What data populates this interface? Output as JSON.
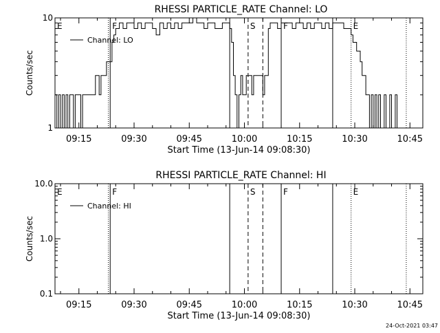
{
  "footer_date": "24-Oct-2021 03:47",
  "chart_data": [
    {
      "type": "line",
      "title": "RHESSI PARTICLE_RATE Channel: LO",
      "xlabel": "Start Time (13-Jun-14 09:08:30)",
      "ylabel": "Counts/sec",
      "y_scale": "log",
      "ylim": [
        1,
        10
      ],
      "y_ticks": [
        {
          "value": 1,
          "label": "1"
        },
        {
          "value": 10,
          "label": "10"
        }
      ],
      "xlim": [
        "09:08:30",
        "10:48:30"
      ],
      "x_ticks": [
        "09:15",
        "09:30",
        "09:45",
        "10:00",
        "10:15",
        "10:30",
        "10:45"
      ],
      "legend": {
        "position": "top-left",
        "label": "Channel: LO"
      },
      "markers": [
        {
          "time": "09:08:30",
          "label": "E",
          "style": "none"
        },
        {
          "time": "09:23:30",
          "label": "F",
          "style": "solid"
        },
        {
          "time": "09:23:00",
          "label": "",
          "style": "dotted"
        },
        {
          "time": "09:56:00",
          "label": "",
          "style": "solid"
        },
        {
          "time": "10:01:00",
          "label": "S",
          "style": "dashed"
        },
        {
          "time": "10:05:00",
          "label": "",
          "style": "dashed"
        },
        {
          "time": "10:10:00",
          "label": "F",
          "style": "solid"
        },
        {
          "time": "10:24:00",
          "label": "",
          "style": "solid"
        },
        {
          "time": "10:29:00",
          "label": "E",
          "style": "dotted"
        },
        {
          "time": "10:44:00",
          "label": "",
          "style": "dotted"
        }
      ],
      "series": [
        {
          "name": "Channel: LO",
          "x": [
            "09:08:30",
            "09:09:00",
            "09:09:30",
            "09:10:00",
            "09:10:30",
            "09:11:00",
            "09:11:30",
            "09:12:00",
            "09:12:30",
            "09:13:00",
            "09:13:30",
            "09:14:00",
            "09:14:30",
            "09:15:00",
            "09:15:30",
            "09:16:00",
            "09:16:30",
            "09:17:00",
            "09:17:30",
            "09:18:00",
            "09:18:30",
            "09:19:00",
            "09:19:30",
            "09:20:00",
            "09:20:30",
            "09:21:00",
            "09:21:30",
            "09:22:00",
            "09:22:30",
            "09:23:00",
            "09:23:30",
            "09:24:00",
            "09:24:30",
            "09:25:00",
            "09:25:30",
            "09:26:00",
            "09:27:00",
            "09:28:00",
            "09:29:00",
            "09:30:00",
            "09:31:00",
            "09:32:00",
            "09:33:00",
            "09:34:00",
            "09:35:00",
            "09:36:00",
            "09:37:00",
            "09:38:00",
            "09:39:00",
            "09:40:00",
            "09:41:00",
            "09:42:00",
            "09:43:00",
            "09:44:00",
            "09:45:00",
            "09:46:00",
            "09:47:00",
            "09:48:00",
            "09:49:00",
            "09:50:00",
            "09:51:00",
            "09:52:00",
            "09:53:00",
            "09:54:00",
            "09:55:00",
            "09:56:00",
            "09:56:30",
            "09:57:00",
            "09:57:30",
            "09:58:00",
            "09:58:30",
            "09:59:00",
            "09:59:30",
            "10:00:00",
            "10:00:30",
            "10:01:00",
            "10:01:30",
            "10:02:00",
            "10:02:30",
            "10:03:00",
            "10:03:30",
            "10:04:00",
            "10:04:30",
            "10:05:00",
            "10:05:30",
            "10:06:00",
            "10:06:30",
            "10:07:00",
            "10:08:00",
            "10:09:00",
            "10:10:00",
            "10:11:00",
            "10:12:00",
            "10:13:00",
            "10:14:00",
            "10:15:00",
            "10:16:00",
            "10:17:00",
            "10:18:00",
            "10:19:00",
            "10:20:00",
            "10:21:00",
            "10:22:00",
            "10:23:00",
            "10:24:00",
            "10:25:00",
            "10:26:00",
            "10:27:00",
            "10:28:00",
            "10:29:00",
            "10:29:30",
            "10:30:00",
            "10:30:30",
            "10:31:00",
            "10:31:30",
            "10:32:00",
            "10:32:30",
            "10:33:00",
            "10:33:30",
            "10:34:00",
            "10:34:30",
            "10:35:00",
            "10:35:30",
            "10:36:00",
            "10:36:30",
            "10:37:00",
            "10:37:30",
            "10:38:00",
            "10:38:30",
            "10:39:00",
            "10:39:30",
            "10:40:00",
            "10:40:30",
            "10:41:00",
            "10:41:30",
            "10:42:00",
            "10:42:30",
            "10:43:00",
            "10:43:30",
            "10:44:00",
            "10:44:30",
            "10:45:00"
          ],
          "values": [
            2,
            1,
            2,
            1,
            2,
            1,
            2,
            1,
            2,
            2,
            1,
            2,
            2,
            2,
            1,
            2,
            2,
            2,
            2,
            2,
            2,
            2,
            3,
            3,
            2,
            3,
            3,
            3,
            4,
            4,
            4,
            6,
            7,
            8,
            8,
            9,
            8,
            9,
            9,
            8,
            9,
            8,
            9,
            9,
            8,
            7,
            9,
            8,
            9,
            8,
            9,
            8,
            9,
            9,
            9,
            10,
            9,
            9,
            8,
            9,
            9,
            8,
            8,
            9,
            9,
            8,
            6,
            3,
            2,
            1,
            2,
            3,
            2,
            2,
            3,
            3,
            3,
            2,
            3,
            3,
            3,
            3,
            3,
            2,
            3,
            3,
            8,
            9,
            9,
            8,
            9,
            9,
            9,
            8,
            9,
            9,
            8,
            9,
            8,
            9,
            9,
            8,
            9,
            8,
            9,
            9,
            9,
            8,
            8,
            7,
            6,
            6,
            5,
            5,
            4,
            3,
            3,
            2,
            2,
            1,
            2,
            1,
            2,
            1,
            2,
            1,
            1,
            2,
            1,
            1,
            2,
            1,
            1,
            2,
            1,
            1,
            1,
            1,
            1,
            1,
            1,
            1
          ]
        }
      ]
    },
    {
      "type": "line",
      "title": "RHESSI PARTICLE_RATE Channel: HI",
      "xlabel": "Start Time (13-Jun-14 09:08:30)",
      "ylabel": "Counts/sec",
      "y_scale": "log",
      "ylim": [
        0.1,
        10
      ],
      "y_ticks": [
        {
          "value": 0.1,
          "label": "0.1"
        },
        {
          "value": 1,
          "label": "1.0"
        },
        {
          "value": 10,
          "label": "10.0"
        }
      ],
      "xlim": [
        "09:08:30",
        "10:48:30"
      ],
      "x_ticks": [
        "09:15",
        "09:30",
        "09:45",
        "10:00",
        "10:15",
        "10:30",
        "10:45"
      ],
      "legend": {
        "position": "top-left",
        "label": "Channel: HI"
      },
      "markers": [
        {
          "time": "09:08:30",
          "label": "E",
          "style": "none"
        },
        {
          "time": "09:23:30",
          "label": "F",
          "style": "solid"
        },
        {
          "time": "09:23:00",
          "label": "",
          "style": "dotted"
        },
        {
          "time": "09:56:00",
          "label": "",
          "style": "solid"
        },
        {
          "time": "10:01:00",
          "label": "S",
          "style": "dashed"
        },
        {
          "time": "10:05:00",
          "label": "",
          "style": "dashed"
        },
        {
          "time": "10:10:00",
          "label": "F",
          "style": "solid"
        },
        {
          "time": "10:24:00",
          "label": "",
          "style": "solid"
        },
        {
          "time": "10:29:00",
          "label": "E",
          "style": "dotted"
        },
        {
          "time": "10:44:00",
          "label": "",
          "style": "dotted"
        }
      ],
      "series": []
    }
  ]
}
